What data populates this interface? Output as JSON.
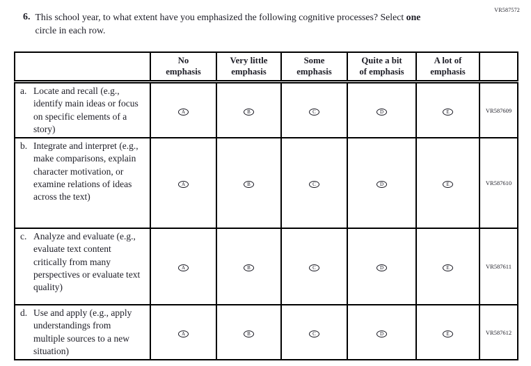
{
  "page": {
    "form_code": "VR587572"
  },
  "question": {
    "number": "6.",
    "text_prefix": "This school year, to what extent have you emphasized the following cognitive processes? Select",
    "text_bold": "one",
    "text_suffix": "circle in each row."
  },
  "table": {
    "headers": [
      "No\nemphasis",
      "Very little\nemphasis",
      "Some\nemphasis",
      "Quite a bit\nof emphasis",
      "A lot of\nemphasis"
    ],
    "options": [
      "A",
      "B",
      "C",
      "D",
      "E"
    ],
    "rows": [
      {
        "letter": "a.",
        "text": "Locate and recall (e.g., identify main ideas or focus on specific elements of a story)",
        "code": "VR587609"
      },
      {
        "letter": "b.",
        "text": "Integrate and interpret (e.g., make comparisons, explain character motivation, or examine relations of ideas across the text)",
        "code": "VR587610"
      },
      {
        "letter": "c.",
        "text": "Analyze and evaluate (e.g., evaluate text content critically from many perspectives or evaluate text quality)",
        "code": "VR587611"
      },
      {
        "letter": "d.",
        "text": "Use and apply (e.g., apply understandings from multiple sources to a new situation)",
        "code": "VR587612"
      }
    ]
  }
}
